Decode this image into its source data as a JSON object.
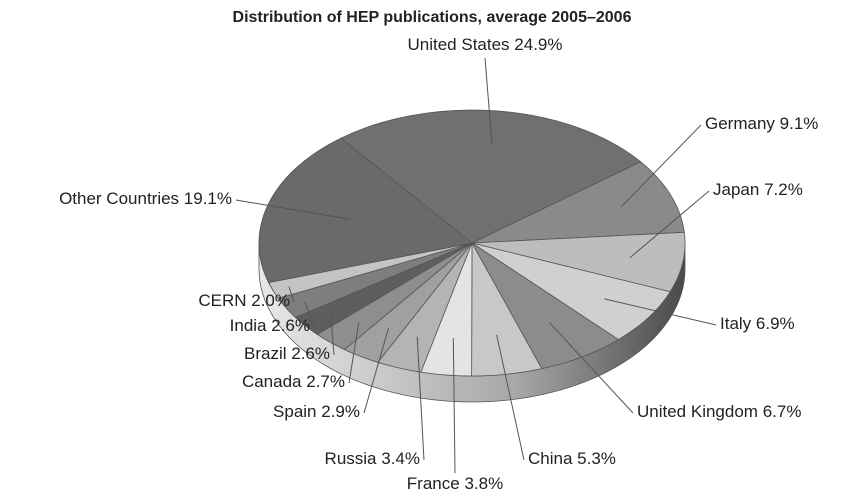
{
  "chart_data": {
    "type": "pie",
    "title": "Distribution of HEP publications, average 2005–2006",
    "categories": [
      "United States",
      "Germany",
      "Japan",
      "Italy",
      "United Kingdom",
      "China",
      "France",
      "Russia",
      "Spain",
      "Canada",
      "Brazil",
      "India",
      "CERN",
      "Other Countries"
    ],
    "values": [
      24.9,
      9.1,
      7.2,
      6.9,
      6.7,
      5.3,
      3.8,
      3.4,
      2.9,
      2.7,
      2.6,
      2.6,
      2.0,
      19.1
    ],
    "value_labels": [
      "24.9%",
      "9.1%",
      "7.2%",
      "6.9%",
      "6.7%",
      "5.3%",
      "3.8%",
      "3.4%",
      "2.9%",
      "2.7%",
      "2.6%",
      "2.6%",
      "2.0%",
      "19.1%"
    ],
    "colors": [
      "#707070",
      "#8a8a8a",
      "#bdbdbd",
      "#d0d0d0",
      "#8c8c8c",
      "#c8c8c8",
      "#e4e4e4",
      "#b4b4b4",
      "#a0a0a0",
      "#8e8e8e",
      "#5e5e5e",
      "#7e7e7e",
      "#c4c4c4",
      "#6a6a6a"
    ]
  }
}
